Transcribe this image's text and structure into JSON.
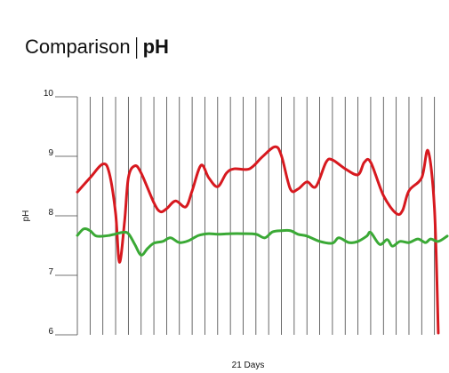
{
  "chart_data": {
    "type": "line",
    "title": "Comparison",
    "subtitle": "pH",
    "x_label": "21 Days",
    "y_label": "pH",
    "xlim": [
      0,
      29
    ],
    "xticks": [
      0,
      1,
      2,
      3,
      4,
      5,
      6,
      7,
      8,
      9,
      10,
      11,
      12,
      13,
      14,
      15,
      16,
      17,
      18,
      19,
      20,
      21,
      22,
      23,
      24,
      25,
      26,
      27,
      28
    ],
    "ylim": [
      6,
      10
    ],
    "yticks": [
      6,
      7,
      8,
      9,
      10
    ],
    "grid": true,
    "series": [
      {
        "color": "#d7191f",
        "x": [
          0,
          1,
          2,
          2.5,
          3,
          3.3,
          3.7,
          4,
          4.5,
          5,
          6,
          6.5,
          7,
          7.7,
          8.5,
          9,
          9.7,
          10.3,
          11,
          11.7,
          12.3,
          13.5,
          14.5,
          15.5,
          16,
          16.7,
          17.3,
          18,
          18.7,
          19.5,
          20,
          21,
          22,
          22.5,
          23,
          24,
          25,
          25.5,
          26,
          27,
          27.5,
          28,
          28.3
        ],
        "values": [
          8.4,
          8.64,
          8.87,
          8.72,
          8.04,
          7.22,
          7.9,
          8.64,
          8.84,
          8.72,
          8.22,
          8.07,
          8.12,
          8.25,
          8.15,
          8.42,
          8.85,
          8.64,
          8.49,
          8.72,
          8.79,
          8.79,
          8.99,
          9.16,
          9.01,
          8.45,
          8.45,
          8.57,
          8.49,
          8.9,
          8.94,
          8.79,
          8.69,
          8.9,
          8.9,
          8.34,
          8.04,
          8.09,
          8.42,
          8.64,
          9.09,
          8.12,
          6.03
        ]
      },
      {
        "color": "#3aa935",
        "x": [
          0,
          0.5,
          1,
          1.5,
          2.5,
          3.5,
          4,
          4.5,
          5,
          5.5,
          6,
          6.7,
          7.3,
          8,
          8.7,
          9.5,
          10.3,
          11,
          12,
          13,
          14,
          14.7,
          15.3,
          16,
          16.7,
          17.3,
          18,
          19,
          20,
          20.5,
          21.3,
          22,
          22.7,
          23,
          23.7,
          24.3,
          24.7,
          25.3,
          26,
          26.7,
          27.3,
          27.7,
          28.3,
          29
        ],
        "values": [
          7.67,
          7.78,
          7.75,
          7.66,
          7.67,
          7.72,
          7.7,
          7.52,
          7.34,
          7.45,
          7.54,
          7.57,
          7.63,
          7.55,
          7.58,
          7.67,
          7.7,
          7.69,
          7.7,
          7.7,
          7.69,
          7.63,
          7.73,
          7.75,
          7.75,
          7.69,
          7.66,
          7.57,
          7.54,
          7.63,
          7.55,
          7.57,
          7.66,
          7.72,
          7.52,
          7.6,
          7.49,
          7.57,
          7.55,
          7.61,
          7.55,
          7.61,
          7.57,
          7.66
        ]
      }
    ]
  }
}
